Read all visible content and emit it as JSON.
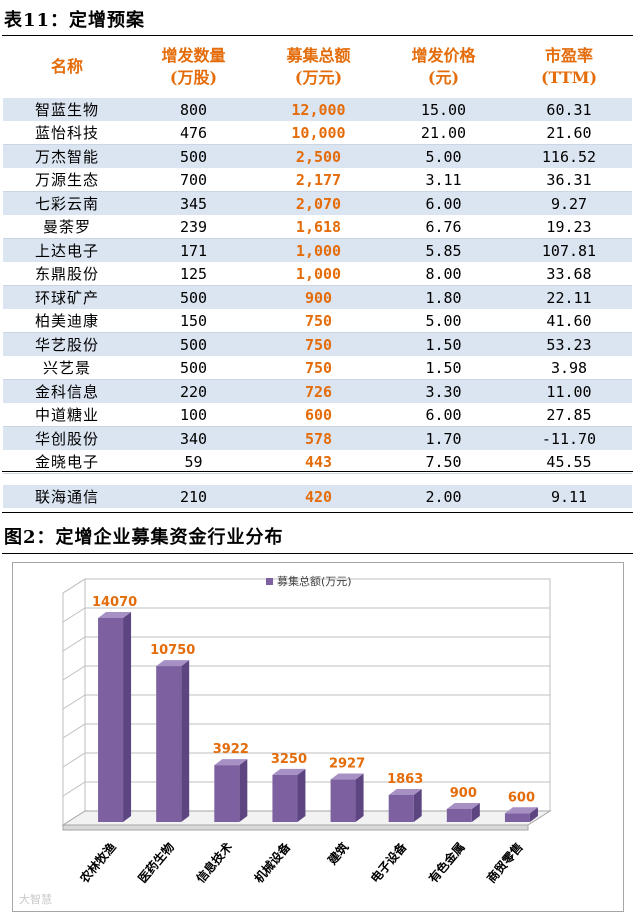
{
  "table_caption": "表11：定增预案",
  "table": {
    "headers": [
      {
        "line1": "名称",
        "line2": ""
      },
      {
        "line1": "增发数量",
        "line2": "(万股)"
      },
      {
        "line1": "募集总额",
        "line2": "(万元)"
      },
      {
        "line1": "增发价格",
        "line2": "(元)"
      },
      {
        "line1": "市盈率",
        "line2": "(TTM)"
      }
    ],
    "rows": [
      {
        "name": "智蓝生物",
        "shares": "800",
        "amount": "12,000",
        "price": "15.00",
        "pe": "60.31"
      },
      {
        "name": "蓝怡科技",
        "shares": "476",
        "amount": "10,000",
        "price": "21.00",
        "pe": "21.60"
      },
      {
        "name": "万杰智能",
        "shares": "500",
        "amount": "2,500",
        "price": "5.00",
        "pe": "116.52"
      },
      {
        "name": "万源生态",
        "shares": "700",
        "amount": "2,177",
        "price": "3.11",
        "pe": "36.31"
      },
      {
        "name": "七彩云南",
        "shares": "345",
        "amount": "2,070",
        "price": "6.00",
        "pe": "9.27"
      },
      {
        "name": "曼荼罗",
        "shares": "239",
        "amount": "1,618",
        "price": "6.76",
        "pe": "19.23"
      },
      {
        "name": "上达电子",
        "shares": "171",
        "amount": "1,000",
        "price": "5.85",
        "pe": "107.81"
      },
      {
        "name": "东鼎股份",
        "shares": "125",
        "amount": "1,000",
        "price": "8.00",
        "pe": "33.68"
      },
      {
        "name": "环球矿产",
        "shares": "500",
        "amount": "900",
        "price": "1.80",
        "pe": "22.11"
      },
      {
        "name": "柏美迪康",
        "shares": "150",
        "amount": "750",
        "price": "5.00",
        "pe": "41.60"
      },
      {
        "name": "华艺股份",
        "shares": "500",
        "amount": "750",
        "price": "1.50",
        "pe": "53.23"
      },
      {
        "name": "兴艺景",
        "shares": "500",
        "amount": "750",
        "price": "1.50",
        "pe": "3.98"
      },
      {
        "name": "金科信息",
        "shares": "220",
        "amount": "726",
        "price": "3.30",
        "pe": "11.00"
      },
      {
        "name": "中道糖业",
        "shares": "100",
        "amount": "600",
        "price": "6.00",
        "pe": "27.85"
      },
      {
        "name": "华创股份",
        "shares": "340",
        "amount": "578",
        "price": "1.70",
        "pe": "-11.70"
      },
      {
        "name": "金晓电子",
        "shares": "59",
        "amount": "443",
        "price": "7.50",
        "pe": "45.55"
      }
    ],
    "last_row": {
      "name": "联海通信",
      "shares": "210",
      "amount": "420",
      "price": "2.00",
      "pe": "9.11"
    }
  },
  "figure_caption": "图2：定增企业募集资金行业分布",
  "chart_data": {
    "type": "bar",
    "title": "",
    "xlabel": "",
    "ylabel": "",
    "legend": "top-center",
    "grid": true,
    "ylim": [
      0,
      16000
    ],
    "categories": [
      "农林牧渔",
      "医药生物",
      "信息技术",
      "机械设备",
      "建筑",
      "电子设备",
      "有色金属",
      "商贸零售"
    ],
    "series": [
      {
        "name": "募集总额(万元)",
        "values": [
          14070,
          10750,
          3922,
          3250,
          2927,
          1863,
          900,
          600
        ]
      }
    ],
    "data_labels": [
      "14070",
      "10750",
      "3922",
      "3250",
      "2927",
      "1863",
      "900",
      "600"
    ],
    "bar_color": "#7d60a0",
    "label_color": "#e46c0a"
  },
  "watermark": "大智慧"
}
